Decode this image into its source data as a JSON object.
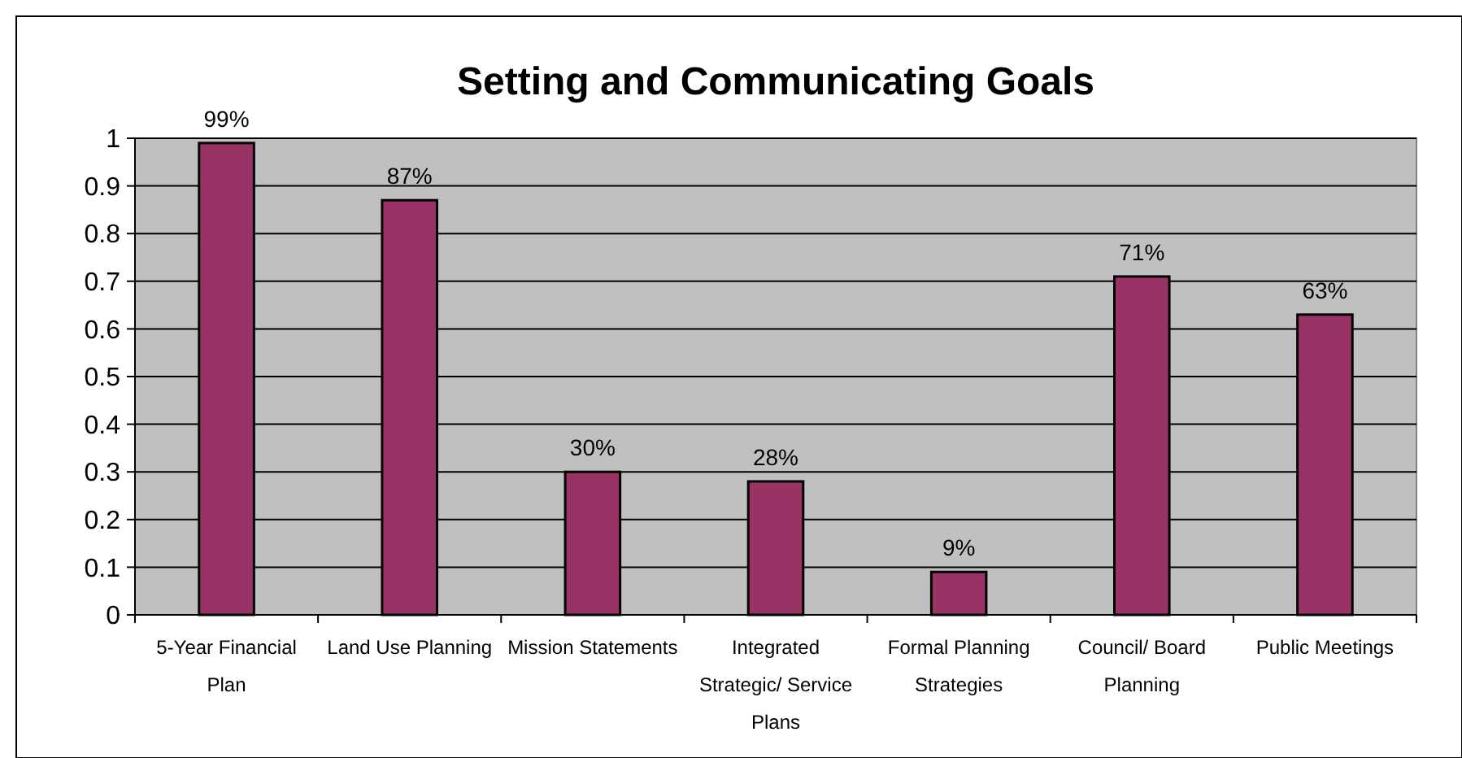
{
  "chart_data": {
    "type": "bar",
    "title": "Setting and Communicating Goals",
    "categories": [
      "5-Year Financial Plan",
      "Land Use Planning",
      "Mission Statements",
      "Integrated Strategic/ Service Plans",
      "Formal Planning Strategies",
      "Council/ Board Planning",
      "Public Meetings"
    ],
    "values": [
      0.99,
      0.87,
      0.3,
      0.28,
      0.09,
      0.71,
      0.63
    ],
    "value_labels": [
      "99%",
      "87%",
      "30%",
      "28%",
      "9%",
      "71%",
      "63%"
    ],
    "color": "#993366",
    "ylim": [
      0,
      1
    ],
    "yticks": [
      0,
      0.1,
      0.2,
      0.3,
      0.4,
      0.5,
      0.6,
      0.7,
      0.8,
      0.9,
      1
    ],
    "grid": "y"
  }
}
